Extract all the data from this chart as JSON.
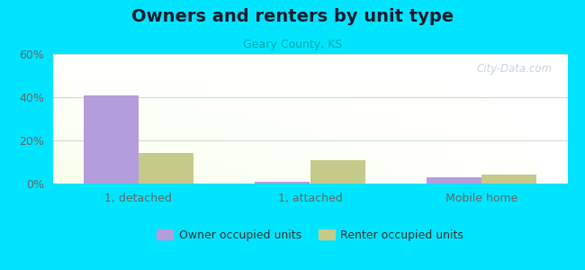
{
  "title": "Owners and renters by unit type",
  "subtitle": "Geary County, KS",
  "categories": [
    "1, detached",
    "1, attached",
    "Mobile home"
  ],
  "owner_values": [
    41,
    1,
    3
  ],
  "renter_values": [
    14,
    11,
    4
  ],
  "owner_color": "#b39ddb",
  "renter_color": "#c5c98a",
  "background_color": "#00e5ff",
  "ylim": [
    0,
    60
  ],
  "yticks": [
    0,
    20,
    40,
    60
  ],
  "ytick_labels": [
    "0%",
    "20%",
    "40%",
    "60%"
  ],
  "bar_width": 0.32,
  "legend_owner": "Owner occupied units",
  "legend_renter": "Renter occupied units",
  "title_fontsize": 14,
  "subtitle_fontsize": 9,
  "watermark": "City-Data.com",
  "grid_color": "#ccddcc",
  "tick_color": "#666666"
}
